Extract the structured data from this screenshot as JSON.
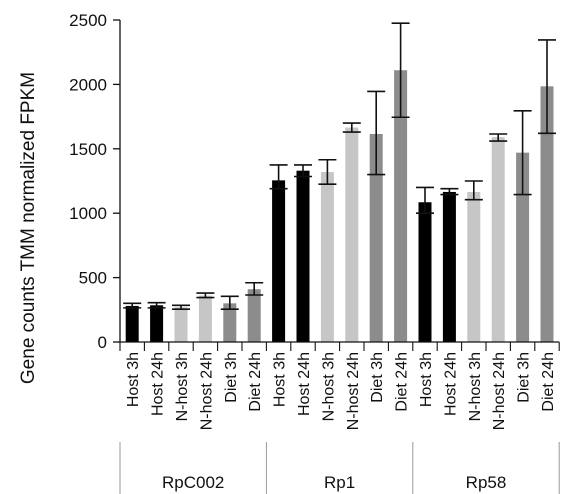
{
  "chart_data": {
    "type": "bar",
    "ylabel": "Gene counts TMM normalized FPKM",
    "ylim": [
      0,
      2500
    ],
    "yticks": [
      0,
      500,
      1000,
      1500,
      2000,
      2500
    ],
    "grid": false,
    "groups": [
      "RpC002",
      "Rp1",
      "Rp58"
    ],
    "categories": [
      "Host 3h",
      "Host 24h",
      "N-host 3h",
      "N-host 24h",
      "Diet 3h",
      "Diet 24h"
    ],
    "category_colors": [
      "#000000",
      "#000000",
      "#c6c6c6",
      "#c6c6c6",
      "#8c8c8c",
      "#8c8c8c"
    ],
    "values": [
      [
        280,
        285,
        270,
        360,
        300,
        410
      ],
      [
        1255,
        1330,
        1320,
        1665,
        1615,
        2110
      ],
      [
        1085,
        1165,
        1165,
        1590,
        1470,
        1985
      ]
    ],
    "errors": [
      [
        [
          265,
          300
        ],
        [
          265,
          305
        ],
        [
          255,
          285
        ],
        [
          345,
          380
        ],
        [
          255,
          355
        ],
        [
          365,
          460
        ]
      ],
      [
        [
          1190,
          1375
        ],
        [
          1285,
          1375
        ],
        [
          1225,
          1415
        ],
        [
          1630,
          1700
        ],
        [
          1300,
          1945
        ],
        [
          1745,
          2475
        ]
      ],
      [
        [
          1000,
          1200
        ],
        [
          1145,
          1190
        ],
        [
          1105,
          1250
        ],
        [
          1560,
          1615
        ],
        [
          1145,
          1795
        ],
        [
          1620,
          2345
        ]
      ]
    ]
  }
}
